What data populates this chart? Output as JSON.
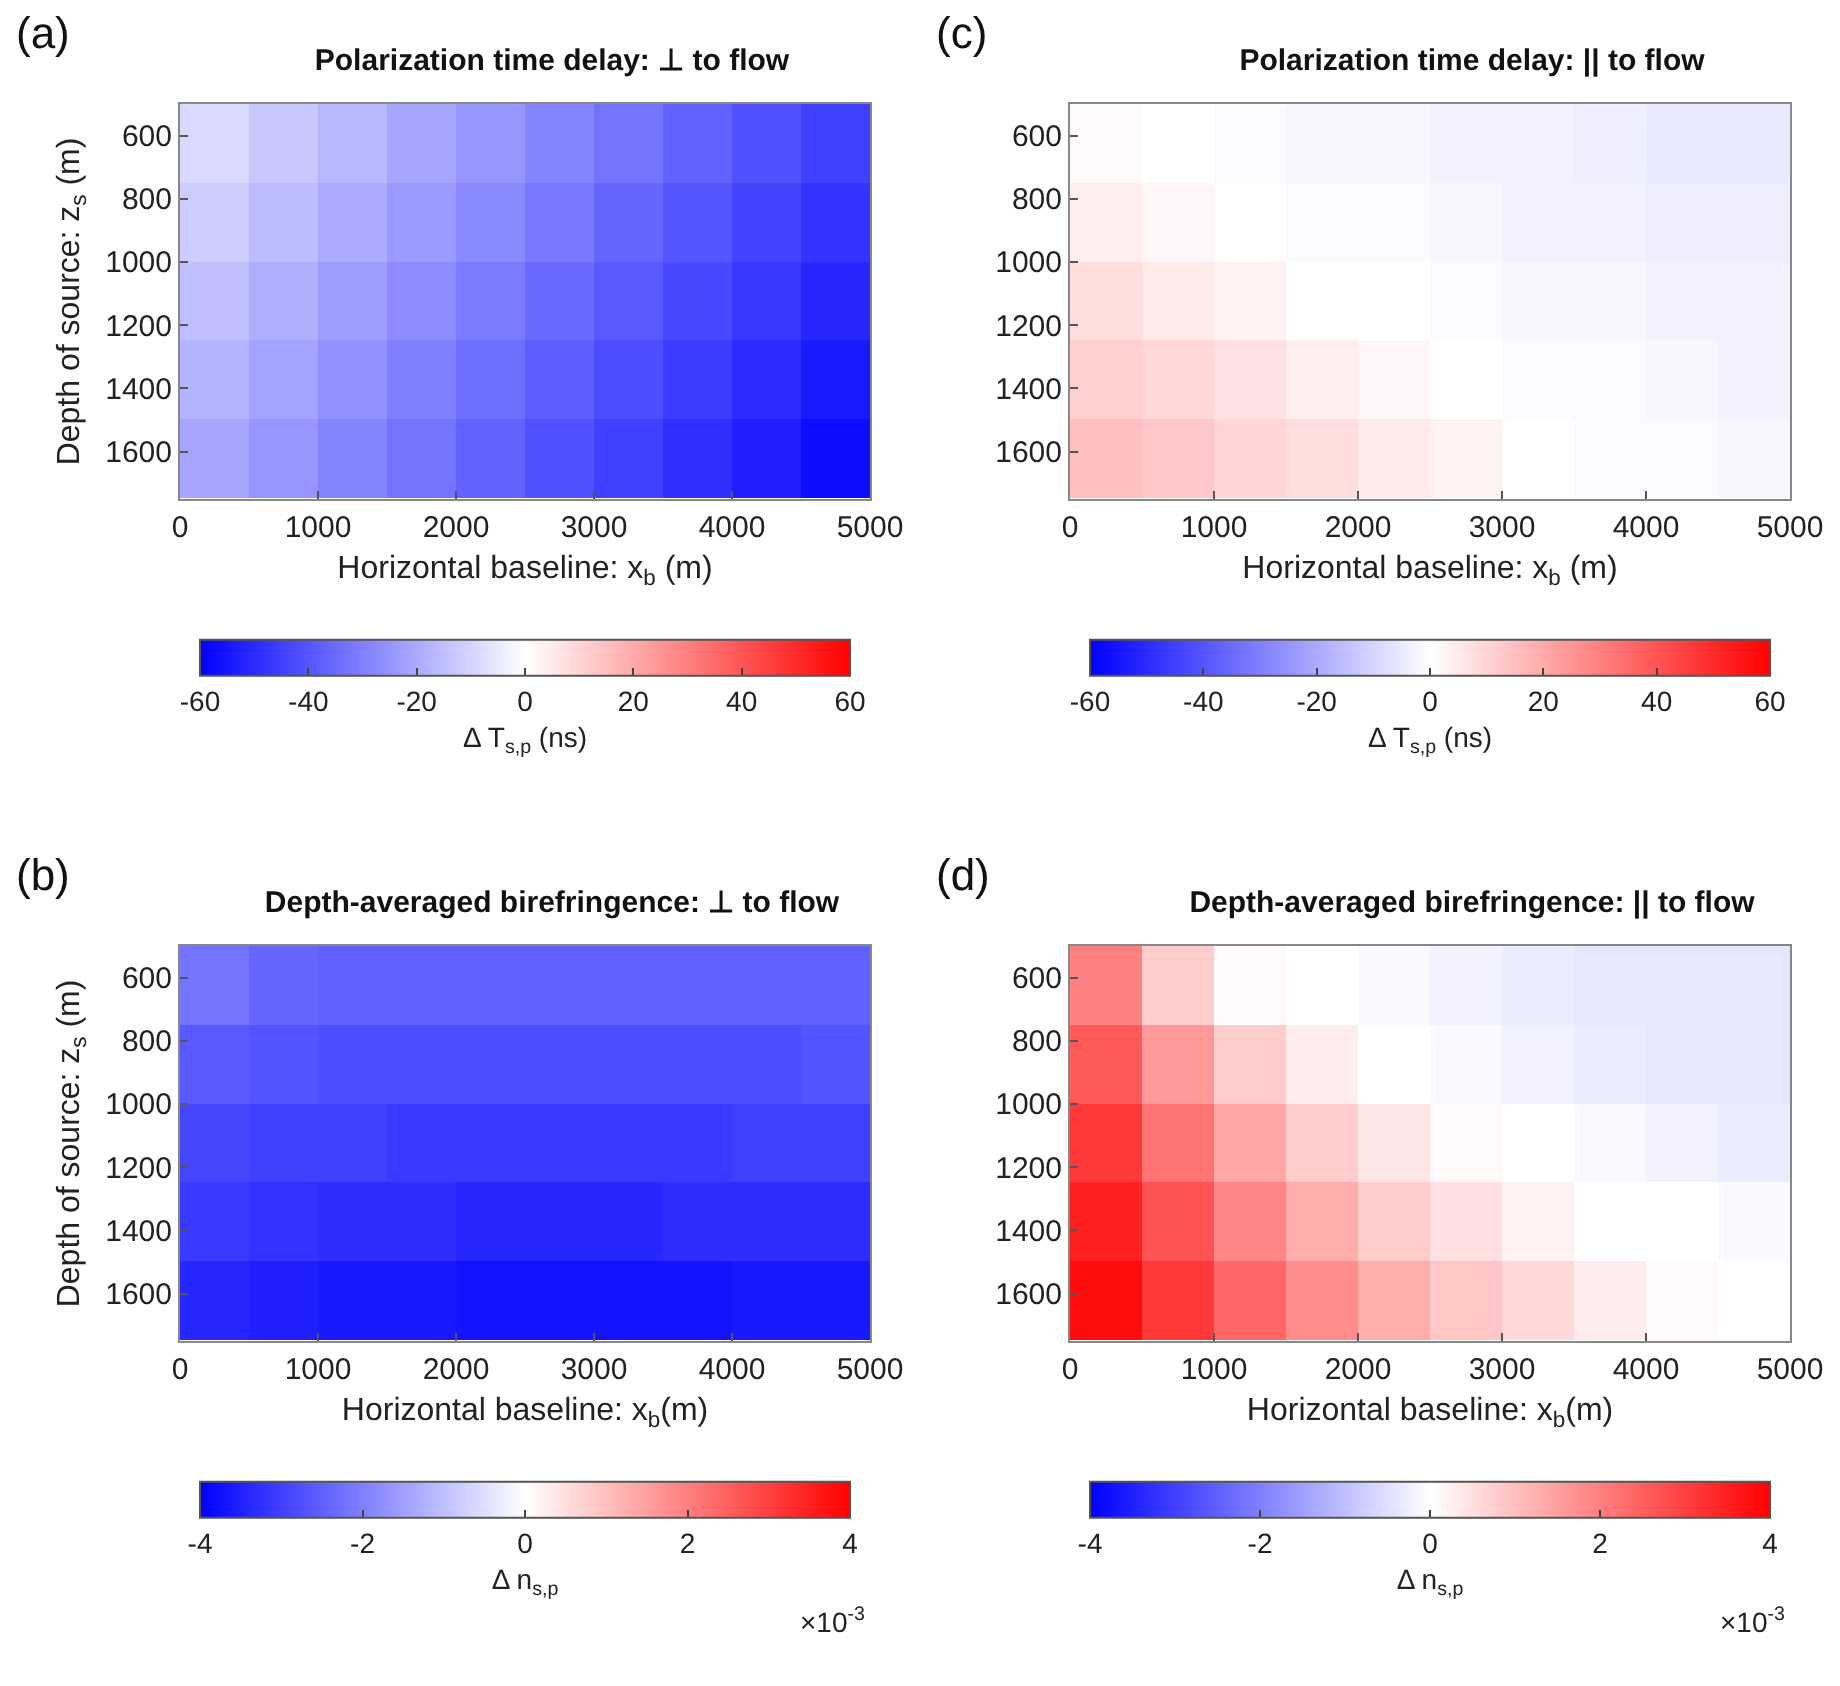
{
  "chart_data": [
    {
      "type": "heatmap",
      "title": "Polarization time delay: ⊥ to flow",
      "xlabel": "Horizontal baseline: x$_{b}$ (m)",
      "ylabel": "Depth of source: z$_{s}$ (m)",
      "clabel": "Δ T$_{s,p}$ (ns)",
      "annotations": [
        "(a)"
      ],
      "x": [
        250,
        750,
        1250,
        1750,
        2250,
        2750,
        3250,
        3750,
        4250,
        4750
      ],
      "y": [
        625,
        875,
        1125,
        1375,
        1625
      ],
      "cells": [
        [
          -9,
          -13,
          -17,
          -21,
          -25,
          -29,
          -33,
          -37,
          -41,
          -45
        ],
        [
          -12,
          -16,
          -20,
          -24,
          -28,
          -32,
          -36,
          -40,
          -44,
          -48
        ],
        [
          -15,
          -19,
          -23,
          -27,
          -31,
          -35,
          -39,
          -43,
          -47,
          -51
        ],
        [
          -18,
          -22,
          -26,
          -30,
          -34,
          -38,
          -42,
          -46,
          -50,
          -54
        ],
        [
          -21,
          -25,
          -29,
          -33,
          -37,
          -41,
          -45,
          -49,
          -53,
          -57
        ]
      ],
      "xlim": [
        0,
        5000
      ],
      "xticks": [
        0,
        1000,
        2000,
        3000,
        4000,
        5000
      ],
      "ylim": [
        1750,
        500
      ],
      "yticks": [
        600,
        800,
        1000,
        1200,
        1400,
        1600
      ],
      "clim": [
        -60,
        60
      ],
      "cticks": [
        -60,
        -40,
        -20,
        0,
        20,
        40,
        60
      ]
    },
    {
      "type": "heatmap",
      "title": "Polarization time delay: || to flow",
      "xlabel": "Horizontal baseline: x$_{b}$ (m)",
      "clabel": "Δ T$_{s,p}$ (ns)",
      "annotations": [
        "(c)"
      ],
      "x": [
        250,
        750,
        1250,
        1750,
        2250,
        2750,
        3250,
        3750,
        4250,
        4750
      ],
      "y": [
        625,
        875,
        1125,
        1375,
        1625
      ],
      "cells": [
        [
          1,
          0,
          -1,
          -2,
          -2,
          -3,
          -3,
          -4,
          -5,
          -5
        ],
        [
          4,
          2,
          0,
          -1,
          -1,
          -2,
          -3,
          -3,
          -4,
          -4
        ],
        [
          8,
          5,
          3,
          0,
          0,
          -1,
          -2,
          -2,
          -3,
          -3
        ],
        [
          11,
          9,
          7,
          4,
          2,
          0,
          -1,
          -1,
          -2,
          -3
        ],
        [
          15,
          13,
          10,
          8,
          5,
          3,
          0,
          -1,
          -1,
          -2
        ]
      ],
      "xlim": [
        0,
        5000
      ],
      "xticks": [
        0,
        1000,
        2000,
        3000,
        4000,
        5000
      ],
      "ylim": [
        1750,
        500
      ],
      "yticks": [
        600,
        800,
        1000,
        1200,
        1400,
        1600
      ],
      "clim": [
        -60,
        60
      ],
      "cticks": [
        -60,
        -40,
        -20,
        0,
        20,
        40,
        60
      ]
    },
    {
      "type": "heatmap",
      "title": "Depth-averaged birefringence: ⊥ to flow",
      "xlabel": "Horizontal baseline: x$_{b}$(m)",
      "ylabel": "Depth of source: z$_{s}$ (m)",
      "clabel": "Δ n$_{s,p}$",
      "annotations": [
        "(b)",
        "×10$^{-3}$"
      ],
      "x": [
        250,
        750,
        1250,
        1750,
        2250,
        2750,
        3250,
        3750,
        4250,
        4750
      ],
      "y": [
        625,
        875,
        1125,
        1375,
        1625
      ],
      "cells": [
        [
          -2.2,
          -2.4,
          -2.5,
          -2.5,
          -2.5,
          -2.5,
          -2.5,
          -2.5,
          -2.5,
          -2.5
        ],
        [
          -2.6,
          -2.7,
          -2.8,
          -2.8,
          -2.8,
          -2.8,
          -2.8,
          -2.8,
          -2.8,
          -2.7
        ],
        [
          -2.9,
          -3.0,
          -3.0,
          -3.1,
          -3.1,
          -3.1,
          -3.1,
          -3.1,
          -3.0,
          -3.0
        ],
        [
          -3.1,
          -3.2,
          -3.3,
          -3.3,
          -3.4,
          -3.4,
          -3.4,
          -3.3,
          -3.3,
          -3.3
        ],
        [
          -3.4,
          -3.5,
          -3.6,
          -3.6,
          -3.7,
          -3.7,
          -3.7,
          -3.7,
          -3.6,
          -3.6
        ]
      ],
      "xlim": [
        0,
        5000
      ],
      "xticks": [
        0,
        1000,
        2000,
        3000,
        4000,
        5000
      ],
      "ylim": [
        1750,
        500
      ],
      "yticks": [
        600,
        800,
        1000,
        1200,
        1400,
        1600
      ],
      "clim": [
        -4,
        4
      ],
      "cticks": [
        -4,
        -2,
        0,
        2,
        4
      ]
    },
    {
      "type": "heatmap",
      "title": "Depth-averaged birefringence: || to flow",
      "xlabel": "Horizontal baseline: x$_{b}$(m)",
      "clabel": "Δ n$_{s,p}$",
      "annotations": [
        "(d)",
        "×10$^{-3}$"
      ],
      "x": [
        250,
        750,
        1250,
        1750,
        2250,
        2750,
        3250,
        3750,
        4250,
        4750
      ],
      "y": [
        625,
        875,
        1125,
        1375,
        1625
      ],
      "cells": [
        [
          2.0,
          0.8,
          0.1,
          0,
          -0.1,
          -0.2,
          -0.3,
          -0.4,
          -0.4,
          -0.4
        ],
        [
          2.6,
          1.6,
          0.8,
          0.3,
          0,
          -0.1,
          -0.2,
          -0.3,
          -0.4,
          -0.4
        ],
        [
          3.1,
          2.2,
          1.4,
          0.8,
          0.4,
          0.1,
          0,
          -0.1,
          -0.2,
          -0.3
        ],
        [
          3.5,
          2.7,
          1.9,
          1.3,
          0.8,
          0.5,
          0.2,
          0,
          0,
          -0.1
        ],
        [
          3.8,
          3.1,
          2.4,
          1.8,
          1.3,
          0.9,
          0.6,
          0.3,
          0.1,
          0
        ]
      ],
      "xlim": [
        0,
        5000
      ],
      "xticks": [
        0,
        1000,
        2000,
        3000,
        4000,
        5000
      ],
      "ylim": [
        1750,
        500
      ],
      "yticks": [
        600,
        800,
        1000,
        1200,
        1400,
        1600
      ],
      "clim": [
        -4,
        4
      ],
      "cticks": [
        -4,
        -2,
        0,
        2,
        4
      ]
    }
  ]
}
